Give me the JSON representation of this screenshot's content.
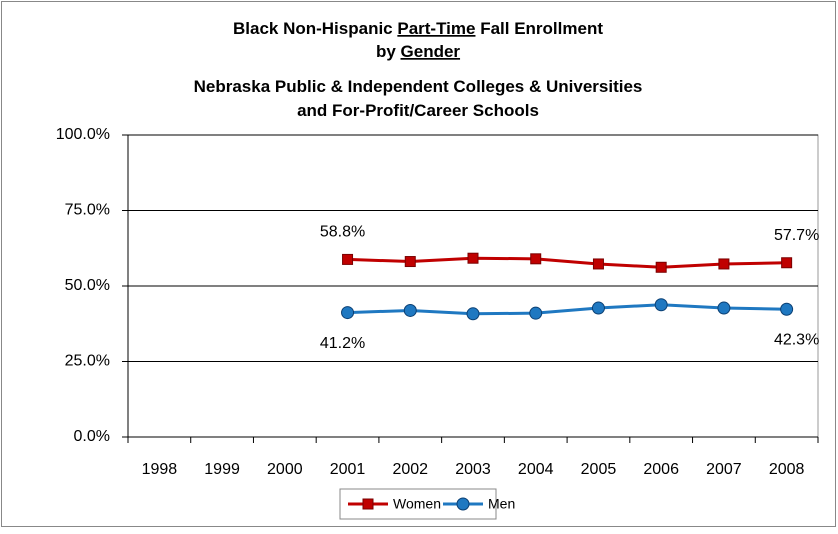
{
  "chart_data": {
    "type": "line",
    "title": [
      [
        {
          "text": "Black Non-Hispanic "
        },
        {
          "text": "Part-Time",
          "underline": true
        },
        {
          "text": " Fall Enrollment"
        }
      ],
      [
        {
          "text": "by "
        },
        {
          "text": "Gender",
          "underline": true
        }
      ],
      [
        {
          "text": "Nebraska Public & Independent Colleges & Universities"
        }
      ],
      [
        {
          "text": "and For-Profit/Career Schools"
        }
      ]
    ],
    "categories": [
      "1998",
      "1999",
      "2000",
      "2001",
      "2002",
      "2003",
      "2004",
      "2005",
      "2006",
      "2007",
      "2008"
    ],
    "series": [
      {
        "name": "Women",
        "color": "#c00000",
        "marker": "square",
        "values": [
          null,
          null,
          null,
          58.8,
          58.1,
          59.2,
          59.0,
          57.3,
          56.2,
          57.3,
          57.7
        ],
        "value_labels": [
          null,
          null,
          null,
          "58.8%",
          null,
          null,
          null,
          null,
          null,
          null,
          "57.7%"
        ]
      },
      {
        "name": "Men",
        "color": "#1f78c1",
        "marker": "circle",
        "values": [
          null,
          null,
          null,
          41.2,
          41.9,
          40.8,
          41.0,
          42.7,
          43.8,
          42.7,
          42.3
        ],
        "value_labels": [
          null,
          null,
          null,
          "41.2%",
          null,
          null,
          null,
          null,
          null,
          null,
          "42.3%"
        ]
      }
    ],
    "ylim": [
      0,
      100
    ],
    "yticks": [
      {
        "value": 0,
        "label": "0.0%"
      },
      {
        "value": 25,
        "label": "25.0%"
      },
      {
        "value": 50,
        "label": "50.0%"
      },
      {
        "value": 75,
        "label": "75.0%"
      },
      {
        "value": 100,
        "label": "100.0%"
      }
    ],
    "grid": true,
    "legend": "bottom"
  }
}
